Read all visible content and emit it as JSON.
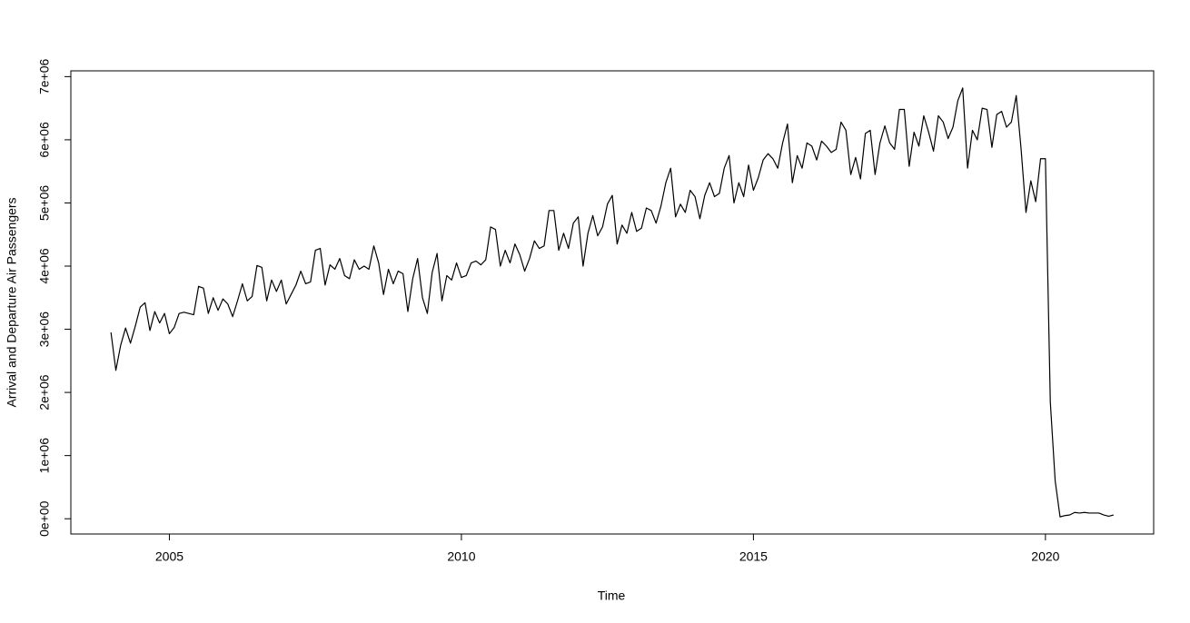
{
  "chart_data": {
    "type": "line",
    "xlabel": "Time",
    "ylabel": "Arrival and Departure Air Passengers",
    "color": "#000000",
    "xlim": [
      2003.313,
      2021.853
    ],
    "ylim": [
      -241600,
      7091600
    ],
    "xticks": [
      2005,
      2010,
      2015,
      2020
    ],
    "yticks": [
      {
        "value": 0,
        "label": "0e+00"
      },
      {
        "value": 1000000,
        "label": "1e+06"
      },
      {
        "value": 2000000,
        "label": "2e+06"
      },
      {
        "value": 3000000,
        "label": "3e+06"
      },
      {
        "value": 4000000,
        "label": "4e+06"
      },
      {
        "value": 5000000,
        "label": "5e+06"
      },
      {
        "value": 6000000,
        "label": "6e+06"
      },
      {
        "value": 7000000,
        "label": "7e+06"
      }
    ],
    "x": [
      2004,
      2004.0833,
      2004.1667,
      2004.25,
      2004.3333,
      2004.4167,
      2004.5,
      2004.5833,
      2004.6667,
      2004.75,
      2004.8333,
      2004.9167,
      2005,
      2005.0833,
      2005.1667,
      2005.25,
      2005.3333,
      2005.4167,
      2005.5,
      2005.5833,
      2005.6667,
      2005.75,
      2005.8333,
      2005.9167,
      2006,
      2006.0833,
      2006.1667,
      2006.25,
      2006.3333,
      2006.4167,
      2006.5,
      2006.5833,
      2006.6667,
      2006.75,
      2006.8333,
      2006.9167,
      2007,
      2007.0833,
      2007.1667,
      2007.25,
      2007.3333,
      2007.4167,
      2007.5,
      2007.5833,
      2007.6667,
      2007.75,
      2007.8333,
      2007.9167,
      2008,
      2008.0833,
      2008.1667,
      2008.25,
      2008.3333,
      2008.4167,
      2008.5,
      2008.5833,
      2008.6667,
      2008.75,
      2008.8333,
      2008.9167,
      2009,
      2009.0833,
      2009.1667,
      2009.25,
      2009.3333,
      2009.4167,
      2009.5,
      2009.5833,
      2009.6667,
      2009.75,
      2009.8333,
      2009.9167,
      2010,
      2010.0833,
      2010.1667,
      2010.25,
      2010.3333,
      2010.4167,
      2010.5,
      2010.5833,
      2010.6667,
      2010.75,
      2010.8333,
      2010.9167,
      2011,
      2011.0833,
      2011.1667,
      2011.25,
      2011.3333,
      2011.4167,
      2011.5,
      2011.5833,
      2011.6667,
      2011.75,
      2011.8333,
      2011.9167,
      2012,
      2012.0833,
      2012.1667,
      2012.25,
      2012.3333,
      2012.4167,
      2012.5,
      2012.5833,
      2012.6667,
      2012.75,
      2012.8333,
      2012.9167,
      2013,
      2013.0833,
      2013.1667,
      2013.25,
      2013.3333,
      2013.4167,
      2013.5,
      2013.5833,
      2013.6667,
      2013.75,
      2013.8333,
      2013.9167,
      2014,
      2014.0833,
      2014.1667,
      2014.25,
      2014.3333,
      2014.4167,
      2014.5,
      2014.5833,
      2014.6667,
      2014.75,
      2014.8333,
      2014.9167,
      2015,
      2015.0833,
      2015.1667,
      2015.25,
      2015.3333,
      2015.4167,
      2015.5,
      2015.5833,
      2015.6667,
      2015.75,
      2015.8333,
      2015.9167,
      2016,
      2016.0833,
      2016.1667,
      2016.25,
      2016.3333,
      2016.4167,
      2016.5,
      2016.5833,
      2016.6667,
      2016.75,
      2016.8333,
      2016.9167,
      2017,
      2017.0833,
      2017.1667,
      2017.25,
      2017.3333,
      2017.4167,
      2017.5,
      2017.5833,
      2017.6667,
      2017.75,
      2017.8333,
      2017.9167,
      2018,
      2018.0833,
      2018.1667,
      2018.25,
      2018.3333,
      2018.4167,
      2018.5,
      2018.5833,
      2018.6667,
      2018.75,
      2018.8333,
      2018.9167,
      2019,
      2019.0833,
      2019.1667,
      2019.25,
      2019.3333,
      2019.4167,
      2019.5,
      2019.5833,
      2019.6667,
      2019.75,
      2019.8333,
      2019.9167,
      2020,
      2020.0833,
      2020.1667,
      2020.25,
      2020.3333,
      2020.4167,
      2020.5,
      2020.5833,
      2020.6667,
      2020.75,
      2020.8333,
      2020.9167,
      2021,
      2021.0833,
      2021.1667
    ],
    "values": [
      2950000,
      2350000,
      2750000,
      3020000,
      2780000,
      3050000,
      3350000,
      3420000,
      2980000,
      3280000,
      3100000,
      3250000,
      2930000,
      3030000,
      3250000,
      3270000,
      3250000,
      3230000,
      3680000,
      3650000,
      3250000,
      3500000,
      3300000,
      3480000,
      3400000,
      3200000,
      3450000,
      3720000,
      3450000,
      3520000,
      4010000,
      3980000,
      3450000,
      3780000,
      3600000,
      3780000,
      3400000,
      3550000,
      3700000,
      3920000,
      3720000,
      3750000,
      4250000,
      4280000,
      3700000,
      4020000,
      3950000,
      4120000,
      3850000,
      3800000,
      4100000,
      3950000,
      4000000,
      3950000,
      4320000,
      4050000,
      3550000,
      3950000,
      3720000,
      3920000,
      3880000,
      3280000,
      3800000,
      4120000,
      3500000,
      3250000,
      3900000,
      4200000,
      3450000,
      3850000,
      3780000,
      4050000,
      3820000,
      3850000,
      4050000,
      4080000,
      4020000,
      4100000,
      4620000,
      4580000,
      4000000,
      4250000,
      4050000,
      4350000,
      4180000,
      3920000,
      4120000,
      4400000,
      4280000,
      4320000,
      4880000,
      4880000,
      4250000,
      4520000,
      4280000,
      4680000,
      4780000,
      4000000,
      4520000,
      4800000,
      4480000,
      4620000,
      4980000,
      5120000,
      4350000,
      4650000,
      4520000,
      4850000,
      4550000,
      4600000,
      4920000,
      4880000,
      4680000,
      4950000,
      5320000,
      5550000,
      4780000,
      4980000,
      4850000,
      5200000,
      5100000,
      4750000,
      5120000,
      5320000,
      5100000,
      5150000,
      5550000,
      5750000,
      5000000,
      5320000,
      5100000,
      5600000,
      5200000,
      5400000,
      5680000,
      5780000,
      5700000,
      5550000,
      5950000,
      6250000,
      5320000,
      5750000,
      5550000,
      5950000,
      5900000,
      5680000,
      5980000,
      5900000,
      5800000,
      5850000,
      6280000,
      6150000,
      5450000,
      5720000,
      5380000,
      6100000,
      6150000,
      5450000,
      5950000,
      6220000,
      5950000,
      5850000,
      6480000,
      6480000,
      5580000,
      6120000,
      5900000,
      6380000,
      6120000,
      5820000,
      6380000,
      6280000,
      6020000,
      6200000,
      6620000,
      6820000,
      5550000,
      6150000,
      6000000,
      6500000,
      6480000,
      5880000,
      6400000,
      6450000,
      6200000,
      6280000,
      6700000,
      5850000,
      4850000,
      5350000,
      5020000,
      5700000,
      5700000,
      1850000,
      600000,
      30000,
      50000,
      60000,
      100000,
      90000,
      100000,
      90000,
      90000,
      90000,
      60000,
      40000,
      60000
    ]
  }
}
